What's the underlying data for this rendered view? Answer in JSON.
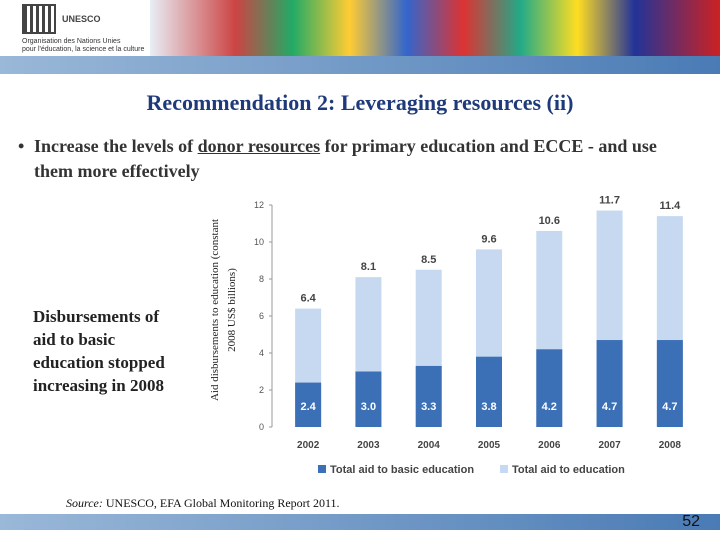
{
  "slide": {
    "logo_text": "UNESCO",
    "org_lines": [
      "Organisation des Nations Unies",
      "pour l'éducation, la science et la culture"
    ],
    "title": "Recommendation 2: Leveraging resources (ii)",
    "bullet": [
      "Increase the levels of ",
      "donor resources",
      " for primary education and ECCE - and use them more effectively"
    ],
    "note": [
      "Disbursements of",
      "aid to basic",
      "education stopped",
      "increasing in 2008"
    ],
    "source": [
      "Source:",
      " UNESCO, EFA Global Monitoring Report 2011."
    ],
    "page": "52"
  },
  "chart_data": {
    "type": "bar",
    "y_label": [
      "Aid disbursements to education (constant",
      "2008 US$ billions)"
    ],
    "categories": [
      "2002",
      "2003",
      "2004",
      "2005",
      "2006",
      "2007",
      "2008"
    ],
    "series": [
      {
        "name": "Total aid to basic education",
        "color": "#3b6fb6",
        "values": [
          2.4,
          3.0,
          3.3,
          3.8,
          4.2,
          4.7,
          4.7
        ],
        "value_labels": [
          "2.4",
          "3.0",
          "3.3",
          "3.8",
          "4.2",
          "4.7",
          "4.7"
        ]
      },
      {
        "name": "Total aid to education",
        "color": "#c6d9f0",
        "values": [
          6.4,
          8.1,
          8.5,
          9.6,
          10.6,
          11.7,
          11.4
        ]
      }
    ],
    "ylim": [
      0,
      12
    ],
    "yticks": [
      0,
      2,
      4,
      6,
      8,
      10,
      12
    ]
  }
}
